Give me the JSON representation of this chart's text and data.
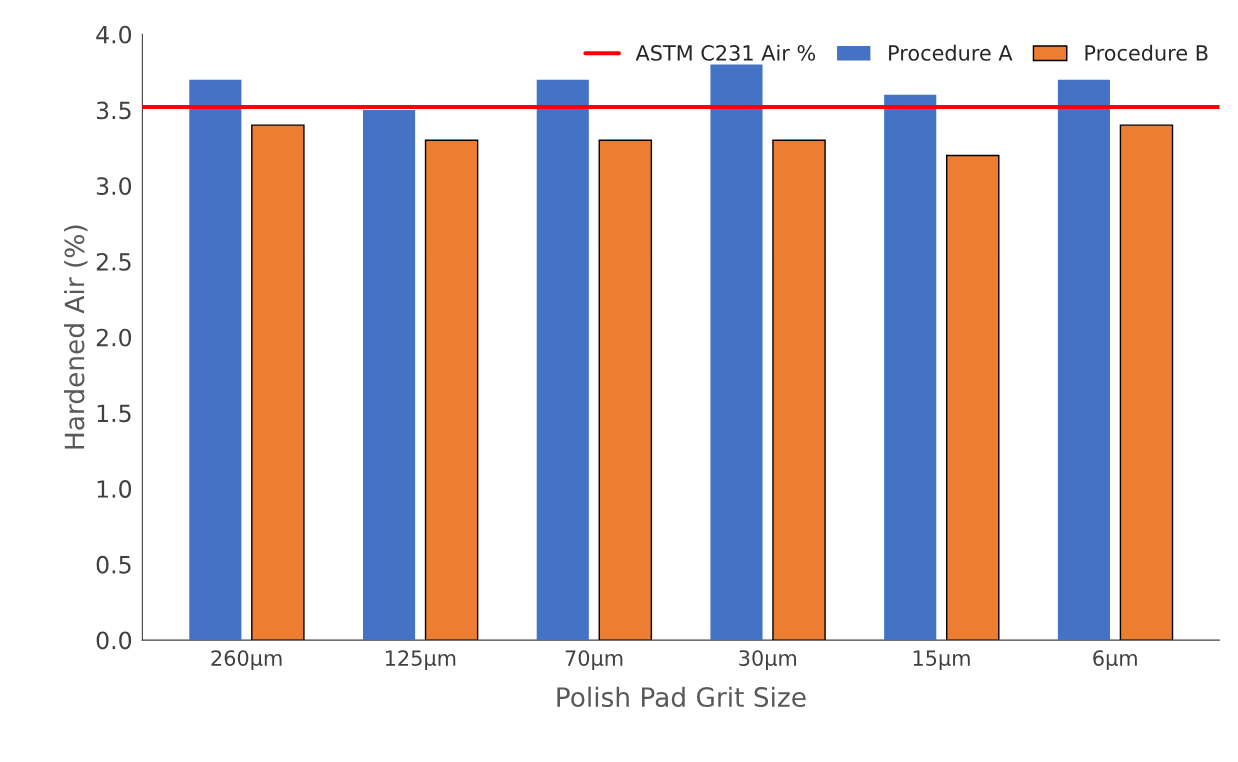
{
  "chart_data": {
    "type": "bar",
    "xlabel": "Polish Pad Grit Size",
    "ylabel": "Hardened Air (%)",
    "categories": [
      "260µm",
      "125µm",
      "70µm",
      "30µm",
      "15µm",
      "6µm"
    ],
    "series": [
      {
        "name": "Procedure A",
        "color": "#4472c4",
        "values": [
          3.7,
          3.5,
          3.7,
          3.8,
          3.6,
          3.7
        ]
      },
      {
        "name": "Procedure B",
        "color": "#ed7d31",
        "values": [
          3.4,
          3.3,
          3.3,
          3.3,
          3.2,
          3.4
        ]
      }
    ],
    "ylim": [
      0,
      4
    ],
    "yticks": [
      {
        "value": 0,
        "label": "0.0"
      },
      {
        "value": 0.5,
        "label": "0.5"
      },
      {
        "value": 1,
        "label": "1.0"
      },
      {
        "value": 1.5,
        "label": "1.5"
      },
      {
        "value": 2,
        "label": "2.0"
      },
      {
        "value": 2.5,
        "label": "2.5"
      },
      {
        "value": 3,
        "label": "3.0"
      },
      {
        "value": 3.5,
        "label": "3.5"
      },
      {
        "value": 4,
        "label": "4.0"
      }
    ],
    "ref_lines": [
      {
        "axis": "y",
        "value": 3.52,
        "label": "ASTM C231 Air %",
        "color": "#ff0000"
      }
    ],
    "grid": false,
    "legend": "top right"
  }
}
